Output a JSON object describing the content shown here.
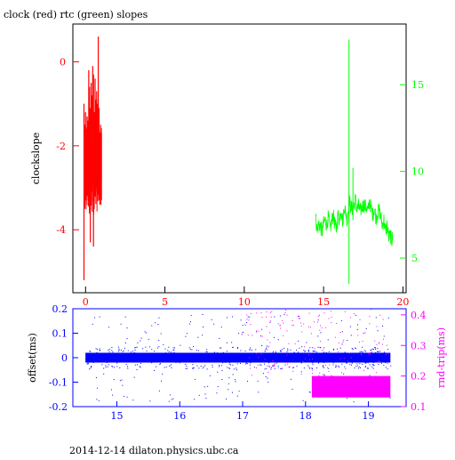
{
  "figure": {
    "title": "clock (red) rtc (green) slopes",
    "footer": "2014-12-14 dilaton.physics.ubc.ca"
  },
  "colors": {
    "axis": "#000000",
    "clock": "#ff0000",
    "rtc": "#00ff00",
    "offset": "#0000ff",
    "rndtrip": "#ff00ff",
    "background": "#ffffff"
  },
  "chart_data": [
    {
      "type": "line",
      "name": "slopes",
      "ylabel": "clockslope",
      "y2label": "",
      "xlim": [
        -0.8,
        20.2
      ],
      "ylim": [
        -5.5,
        0.9
      ],
      "y2lim": [
        3.0,
        18.5
      ],
      "xticks": [
        0,
        5,
        10,
        15,
        20
      ],
      "yticks": [
        0,
        -2,
        -4
      ],
      "y2ticks": [
        5,
        10,
        15
      ],
      "series": [
        {
          "name": "clock",
          "axis": "left",
          "color": "#ff0000",
          "x": [
            -0.1,
            -0.05,
            0.0,
            0.05,
            0.1,
            0.15,
            0.2,
            0.25,
            0.3,
            0.35,
            0.4,
            0.45,
            0.5,
            0.55,
            0.6,
            0.65,
            0.7,
            0.75,
            0.8,
            0.85,
            0.9,
            0.95,
            1.0
          ],
          "low": [
            -5.2,
            -3.5,
            -3.3,
            -3.4,
            -3.2,
            -3.3,
            -3.0,
            -3.6,
            -4.3,
            -3.3,
            -3.1,
            -2.9,
            -4.4,
            -3.0,
            -3.2,
            -3.1,
            -2.9,
            -3.0,
            -3.1,
            -3.3,
            -3.4,
            -3.2,
            -3.3
          ],
          "high": [
            -1.0,
            -1.5,
            -1.2,
            -1.6,
            -1.3,
            -1.4,
            -0.2,
            -0.6,
            -1.1,
            -0.5,
            -0.8,
            -0.1,
            -0.3,
            -1.2,
            -0.4,
            -0.9,
            -0.7,
            -1.0,
            0.6,
            -1.1,
            -1.7,
            -1.5,
            -1.7
          ]
        },
        {
          "name": "rtc",
          "axis": "right",
          "color": "#00ff00",
          "x": [
            14.5,
            14.6,
            14.7,
            14.8,
            14.9,
            15.0,
            15.1,
            15.2,
            15.3,
            15.4,
            15.5,
            15.6,
            15.7,
            15.8,
            15.9,
            16.0,
            16.1,
            16.2,
            16.3,
            16.4,
            16.5,
            16.6,
            16.7,
            16.8,
            16.9,
            17.0,
            17.1,
            17.2,
            17.3,
            17.4,
            17.5,
            17.6,
            17.7,
            17.8,
            17.9,
            18.0,
            18.1,
            18.2,
            18.3,
            18.4,
            18.5,
            18.6,
            18.7,
            18.8,
            18.9,
            19.0,
            19.1,
            19.2,
            19.3,
            19.35
          ],
          "values": [
            7.3,
            6.6,
            7.0,
            6.8,
            6.5,
            7.0,
            7.2,
            6.9,
            7.4,
            6.6,
            7.1,
            7.5,
            7.0,
            6.6,
            7.5,
            7.2,
            7.9,
            7.0,
            8.0,
            7.6,
            7.1,
            8.4,
            8.0,
            7.8,
            8.0,
            8.4,
            7.8,
            8.0,
            7.7,
            7.9,
            8.1,
            8.0,
            7.9,
            7.7,
            8.3,
            7.8,
            7.5,
            7.9,
            7.3,
            7.6,
            7.8,
            7.4,
            6.9,
            7.2,
            6.5,
            6.9,
            6.2,
            6.3,
            6.0,
            6.2
          ],
          "spikes": [
            {
              "x": 16.6,
              "low": 3.5,
              "high": 17.6
            },
            {
              "x": 16.85,
              "low": 7.2,
              "high": 10.2
            }
          ]
        }
      ]
    },
    {
      "type": "scatter",
      "name": "offset",
      "ylabel": "offset(ms)",
      "y2label": "rnd-trip(ms)",
      "xlim": [
        14.3,
        19.6
      ],
      "ylim": [
        -0.2,
        0.2
      ],
      "y2lim": [
        0.1,
        0.42
      ],
      "xticks": [
        15,
        16,
        17,
        18,
        19
      ],
      "yticks": [
        0.2,
        0.1,
        0,
        -0.1,
        -0.2
      ],
      "y2ticks": [
        0.1,
        0.2,
        0.3,
        0.4
      ],
      "series": [
        {
          "name": "offset",
          "axis": "left",
          "color": "#0000ff",
          "x_range": [
            14.5,
            19.35
          ],
          "band": [
            -0.02,
            0.02
          ],
          "scatter_extent": [
            -0.2,
            0.2
          ]
        },
        {
          "name": "rnd-trip",
          "axis": "right",
          "color": "#ff00ff",
          "x_range": [
            18.1,
            19.35
          ],
          "band": [
            0.13,
            0.2
          ],
          "scatter_extent": [
            0.15,
            0.42
          ]
        }
      ]
    }
  ]
}
